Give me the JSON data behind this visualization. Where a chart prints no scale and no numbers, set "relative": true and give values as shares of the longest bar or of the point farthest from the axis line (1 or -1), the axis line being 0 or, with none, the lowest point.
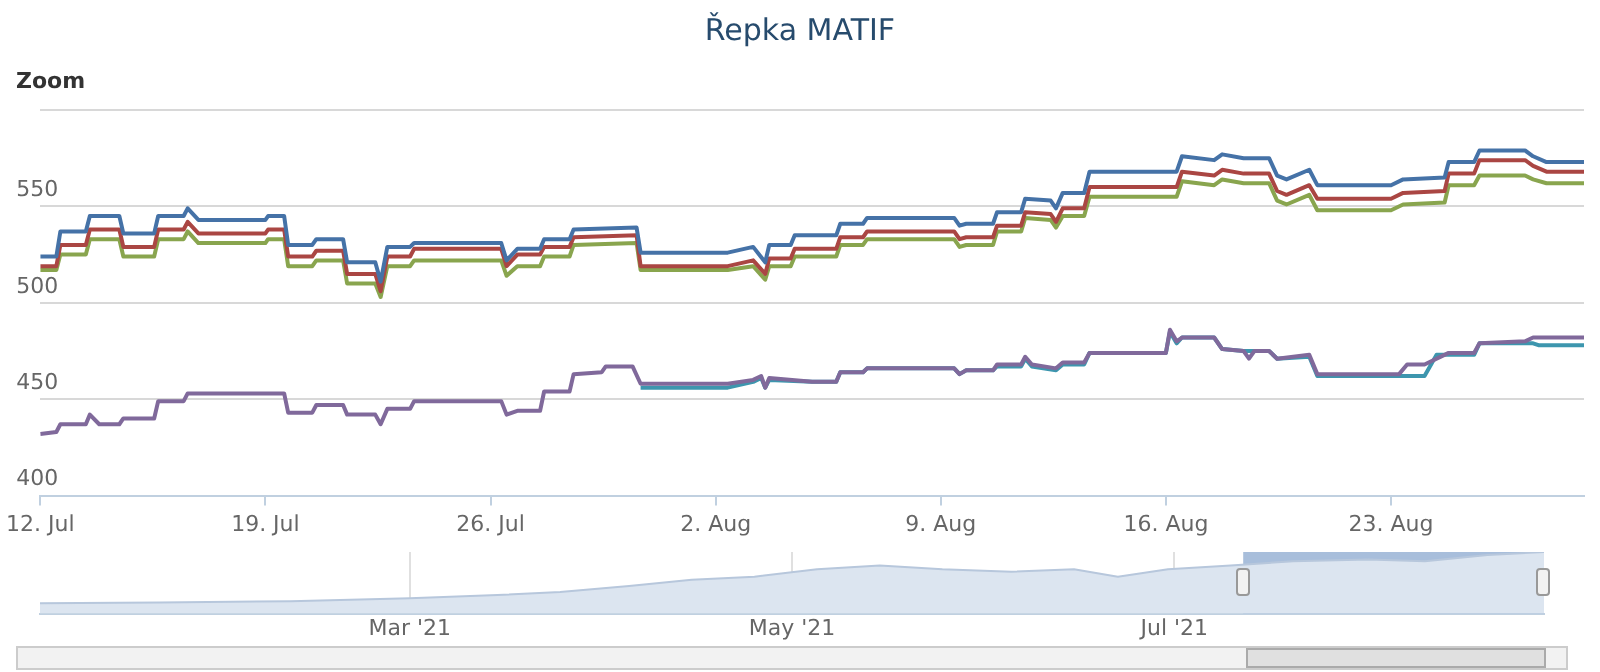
{
  "chart_data": [
    {
      "type": "line",
      "title": "Řepka MATIF",
      "annotations": [
        "Zoom"
      ],
      "grid": "y",
      "marker": "none",
      "line_style": "solid",
      "xlim": [
        "--07-12",
        "--08-29"
      ],
      "xticks": [
        {
          "value": "--07-12",
          "label": "12. Jul"
        },
        {
          "value": "--07-19",
          "label": "19. Jul"
        },
        {
          "value": "--07-26",
          "label": "26. Jul"
        },
        {
          "value": "--08-02",
          "label": "2. Aug"
        },
        {
          "value": "--08-09",
          "label": "9. Aug"
        },
        {
          "value": "--08-16",
          "label": "16. Aug"
        },
        {
          "value": "--08-23",
          "label": "23. Aug"
        }
      ],
      "ylim": [
        400,
        600
      ],
      "yticks": [
        400,
        450,
        500,
        550,
        {
          "value": 600,
          "label": null
        }
      ],
      "x": [
        "--07-12T00:00",
        "--07-12T12:00",
        "--07-12T15:00",
        "--07-13T10:00",
        "--07-13T13:00",
        "--07-14T11:00",
        "--07-14T14:00",
        "--07-15T13:00",
        "--07-15T16:00",
        "--07-16T11:00",
        "--07-16T14:00",
        "--07-16T22:00",
        "--07-19T00:00",
        "--07-19T02:00",
        "--07-19T14:00",
        "--07-19T17:00",
        "--07-20T11:00",
        "--07-20T14:00",
        "--07-21T10:00",
        "--07-21T13:00",
        "--07-22T10:00",
        "--07-22T14:00",
        "--07-22T19:00",
        "--07-23T12:00",
        "--07-23T15:00",
        "--07-26T08:00",
        "--07-26T12:00",
        "--07-26T20:00",
        "--07-27T13:00",
        "--07-27T16:00",
        "--07-28T11:00",
        "--07-28T14:00",
        "--07-30T13:00",
        "--07-30T16:00",
        "--08-02T09:00",
        "--08-03T04:00",
        "--08-03T13:00",
        "--08-03T16:00",
        "--08-04T08:00",
        "--08-04T11:00",
        "--08-05T18:00",
        "--08-05T21:00",
        "--08-06T14:00",
        "--08-06T17:00",
        "--08-09T10:00",
        "--08-09T14:00",
        "--08-09T19:00",
        "--08-10T15:00",
        "--08-10T18:00",
        "--08-11T12:00",
        "--08-11T15:00",
        "--08-12T10:00",
        "--08-12T14:00",
        "--08-12T19:00",
        "--08-13T11:00",
        "--08-13T15:00",
        "--08-16T08:00",
        "--08-16T12:00",
        "--08-17T12:00",
        "--08-17T18:00",
        "--08-18T10:00",
        "--08-19T05:00",
        "--08-19T11:00",
        "--08-19T18:00",
        "--08-20T11:00",
        "--08-20T17:00",
        "--08-23T00:00",
        "--08-23T09:00",
        "--08-24T16:00",
        "--08-24T19:00",
        "--08-25T14:00",
        "--08-25T18:00",
        "--08-27T04:00",
        "--08-27T10:00",
        "--08-27T20:00",
        "--08-29T00:00"
      ],
      "series": [
        {
          "color": "#4572a7",
          "values": [
            524,
            524,
            537,
            537,
            545,
            545,
            536,
            536,
            545,
            545,
            549,
            543,
            543,
            545,
            545,
            530,
            530,
            533,
            533,
            521,
            521,
            511,
            529,
            529,
            531,
            531,
            522,
            528,
            528,
            533,
            533,
            538,
            539,
            526,
            526,
            529,
            521,
            530,
            530,
            535,
            535,
            541,
            541,
            544,
            544,
            540,
            541,
            541,
            547,
            547,
            554,
            553,
            549,
            557,
            557,
            568,
            568,
            576,
            574,
            577,
            575,
            575,
            566,
            564,
            569,
            561,
            561,
            564,
            565,
            573,
            573,
            579,
            579,
            576,
            573,
            573
          ]
        },
        {
          "color": "#aa4643",
          "values": [
            519,
            519,
            530,
            530,
            538,
            538,
            529,
            529,
            538,
            538,
            542,
            536,
            536,
            538,
            538,
            524,
            524,
            527,
            527,
            515,
            515,
            506,
            524,
            524,
            528,
            528,
            519,
            525,
            525,
            529,
            529,
            534,
            535,
            519,
            519,
            522,
            515,
            523,
            523,
            528,
            528,
            534,
            534,
            537,
            537,
            533,
            534,
            534,
            540,
            540,
            547,
            546,
            542,
            549,
            549,
            560,
            560,
            568,
            566,
            569,
            567,
            567,
            558,
            556,
            561,
            554,
            554,
            557,
            558,
            567,
            567,
            574,
            574,
            571,
            568,
            568
          ]
        },
        {
          "color": "#89a54e",
          "values": [
            517,
            517,
            525,
            525,
            533,
            533,
            524,
            524,
            533,
            533,
            537,
            531,
            531,
            533,
            533,
            519,
            519,
            522,
            522,
            510,
            510,
            503,
            519,
            519,
            522,
            522,
            514,
            519,
            519,
            524,
            524,
            530,
            531,
            517,
            517,
            519,
            512,
            519,
            519,
            524,
            524,
            530,
            530,
            533,
            533,
            529,
            530,
            530,
            537,
            537,
            544,
            543,
            539,
            545,
            545,
            555,
            555,
            563,
            561,
            564,
            562,
            562,
            553,
            551,
            556,
            548,
            548,
            551,
            552,
            561,
            561,
            566,
            566,
            564,
            562,
            562
          ]
        },
        {
          "color": "#80699b",
          "x": [
            "--07-12T00:00",
            "--07-12T12:00",
            "--07-12T15:00",
            "--07-13T10:00",
            "--07-13T13:00",
            "--07-13T20:00",
            "--07-14T11:00",
            "--07-14T14:00",
            "--07-15T13:00",
            "--07-15T16:00",
            "--07-16T11:00",
            "--07-16T14:00",
            "--07-19T14:00",
            "--07-19T17:00",
            "--07-20T11:00",
            "--07-20T14:00",
            "--07-21T10:00",
            "--07-21T13:00",
            "--07-22T10:00",
            "--07-22T14:00",
            "--07-22T19:00",
            "--07-23T12:00",
            "--07-23T15:00",
            "--07-26T08:00",
            "--07-26T12:00",
            "--07-26T20:00",
            "--07-27T13:00",
            "--07-27T16:00",
            "--07-28T11:00",
            "--07-28T14:00",
            "--07-29T11:00",
            "--07-29T14:00",
            "--07-30T10:00",
            "--07-30T16:00",
            "--08-02T09:00",
            "--08-03T04:00",
            "--08-03T10:00",
            "--08-03T13:00",
            "--08-03T16:00",
            "--08-05T00:00",
            "--08-05T18:00",
            "--08-05T21:00",
            "--08-06T14:00",
            "--08-06T17:00",
            "--08-09T10:00",
            "--08-09T14:00",
            "--08-09T19:00",
            "--08-10T15:00",
            "--08-10T18:00",
            "--08-11T12:00",
            "--08-11T15:00",
            "--08-11T20:00",
            "--08-12T14:00",
            "--08-12T19:00",
            "--08-13T11:00",
            "--08-13T15:00",
            "--08-16T00:00",
            "--08-16T03:00",
            "--08-16T08:00",
            "--08-16T12:00",
            "--08-17T12:00",
            "--08-17T18:00",
            "--08-18T10:00",
            "--08-18T14:00",
            "--08-18T18:00",
            "--08-19T05:00",
            "--08-19T11:00",
            "--08-20T11:00",
            "--08-20T17:00",
            "--08-23T06:00",
            "--08-23T12:00",
            "--08-24T01:00",
            "--08-24T19:00",
            "--08-25T14:00",
            "--08-25T18:00",
            "--08-27T04:00",
            "--08-27T10:00",
            "--08-29T00:00"
          ],
          "values": [
            432,
            433,
            437,
            437,
            442,
            437,
            437,
            440,
            440,
            449,
            449,
            453,
            453,
            443,
            443,
            447,
            447,
            442,
            442,
            437,
            445,
            445,
            449,
            449,
            442,
            444,
            444,
            454,
            454,
            463,
            464,
            467,
            467,
            458,
            458,
            460,
            462,
            456,
            461,
            459,
            459,
            464,
            464,
            466,
            466,
            463,
            465,
            465,
            468,
            468,
            472,
            468,
            466,
            469,
            469,
            474,
            474,
            486,
            480,
            482,
            482,
            476,
            475,
            471,
            475,
            475,
            471,
            473,
            463,
            463,
            468,
            468,
            474,
            474,
            479,
            480,
            482,
            482
          ]
        },
        {
          "color": "#3d96ae",
          "x": [
            "--07-30T16:00",
            "--08-02T09:00",
            "--08-03T04:00",
            "--08-03T10:00",
            "--08-03T13:00",
            "--08-03T16:00",
            "--08-05T00:00",
            "--08-05T18:00",
            "--08-05T21:00",
            "--08-06T14:00",
            "--08-06T17:00",
            "--08-09T10:00",
            "--08-09T14:00",
            "--08-09T19:00",
            "--08-10T15:00",
            "--08-10T18:00",
            "--08-11T12:00",
            "--08-11T15:00",
            "--08-11T20:00",
            "--08-12T14:00",
            "--08-12T19:00",
            "--08-13T11:00",
            "--08-13T15:00",
            "--08-16T00:00",
            "--08-16T03:00",
            "--08-16T08:00",
            "--08-16T12:00",
            "--08-17T12:00",
            "--08-17T18:00",
            "--08-18T10:00",
            "--08-19T05:00",
            "--08-19T11:00",
            "--08-20T11:00",
            "--08-20T17:00",
            "--08-24T01:00",
            "--08-24T10:00",
            "--08-25T14:00",
            "--08-25T18:00",
            "--08-27T10:00",
            "--08-27T14:00",
            "--08-29T00:00"
          ],
          "values": [
            456,
            456,
            459,
            461,
            456,
            460,
            459,
            459,
            464,
            464,
            466,
            466,
            463,
            465,
            465,
            467,
            467,
            471,
            467,
            465,
            468,
            468,
            474,
            474,
            485,
            479,
            482,
            482,
            476,
            475,
            475,
            471,
            472,
            462,
            462,
            473,
            473,
            479,
            479,
            478,
            478
          ]
        }
      ]
    },
    {
      "type": "area",
      "relative": true,
      "grid": "x",
      "color": "#dce5f0",
      "xlim": [
        "2021-01-01",
        "2021-08-29"
      ],
      "xticks": [
        {
          "value": "2021-03-01",
          "label": "Mar '21"
        },
        {
          "value": "2021-05-01",
          "label": "May '21"
        },
        {
          "value": "2021-07-01",
          "label": "Jul '21"
        }
      ],
      "bands": [
        {
          "axis": "x",
          "from": "2021-07-12",
          "to": "2021-08-29",
          "color": "#a8bedb"
        }
      ],
      "x": [
        "2021-01-01",
        "2021-01-20",
        "2021-02-10",
        "2021-03-01",
        "2021-03-15",
        "2021-03-25",
        "2021-04-05",
        "2021-04-15",
        "2021-04-25",
        "2021-05-05",
        "2021-05-15",
        "2021-05-25",
        "2021-06-05",
        "2021-06-15",
        "2021-06-22",
        "2021-06-30",
        "2021-07-10",
        "2021-07-20",
        "2021-08-01",
        "2021-08-10",
        "2021-08-20",
        "2021-08-29"
      ],
      "values": [
        0.17,
        0.18,
        0.2,
        0.25,
        0.3,
        0.35,
        0.45,
        0.55,
        0.6,
        0.72,
        0.78,
        0.72,
        0.68,
        0.72,
        0.6,
        0.72,
        0.78,
        0.85,
        0.88,
        0.85,
        0.95,
        1
      ]
    }
  ]
}
